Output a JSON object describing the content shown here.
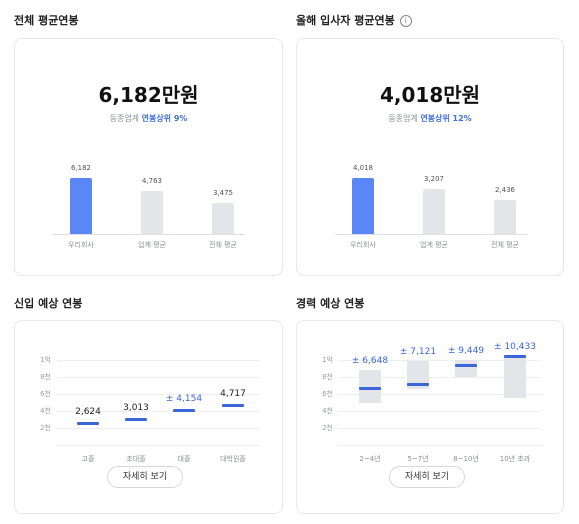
{
  "sections": {
    "overall": {
      "title": "전체 평균연봉",
      "value": "6,182만원",
      "sub_prefix": "동종업계",
      "sub_highlight": "연봉상위 9%",
      "bars": [
        {
          "label": "우리회사",
          "value": 6182,
          "value_label": "6,182"
        },
        {
          "label": "업계 평균",
          "value": 4763,
          "value_label": "4,763"
        },
        {
          "label": "전체 평균",
          "value": 3475,
          "value_label": "3,475"
        }
      ]
    },
    "new_hire": {
      "title": "올해 입사자 평균연봉",
      "info_icon": "info-icon",
      "value": "4,018만원",
      "sub_prefix": "동종업계",
      "sub_highlight": "연봉상위 12%",
      "bars": [
        {
          "label": "우리회사",
          "value": 4018,
          "value_label": "4,018"
        },
        {
          "label": "업계 평균",
          "value": 3207,
          "value_label": "3,207"
        },
        {
          "label": "전체 평균",
          "value": 2436,
          "value_label": "2,436"
        }
      ]
    },
    "entry": {
      "title": "신입 예상 연봉",
      "y_ticks": [
        "1억",
        "8천",
        "6천",
        "4천",
        "2천"
      ],
      "points": [
        {
          "label": "고졸",
          "value": 2624,
          "value_label": "2,624",
          "highlight": false
        },
        {
          "label": "초대졸",
          "value": 3013,
          "value_label": "3,013",
          "highlight": false
        },
        {
          "label": "대졸",
          "value": 4154,
          "value_label": "± 4,154",
          "highlight": true
        },
        {
          "label": "대학원졸",
          "value": 4717,
          "value_label": "4,717",
          "highlight": false
        }
      ],
      "button": "자세히 보기"
    },
    "career": {
      "title": "경력 예상 연봉",
      "y_ticks": [
        "1억",
        "8천",
        "6천",
        "4천",
        "2천"
      ],
      "points": [
        {
          "label": "2~4년",
          "value": 6648,
          "low": 4900,
          "high": 8800,
          "value_label": "± 6,648"
        },
        {
          "label": "5~7년",
          "value": 7121,
          "low": 6600,
          "high": 9900,
          "value_label": "± 7,121"
        },
        {
          "label": "8~10년",
          "value": 9449,
          "low": 8000,
          "high": 10000,
          "value_label": "± 9,449"
        },
        {
          "label": "10년 초과",
          "value": 10433,
          "low": 5500,
          "high": 10433,
          "value_label": "± 10,433"
        }
      ],
      "button": "자세히 보기"
    }
  },
  "colors": {
    "primary": "#5b86f5",
    "accent": "#3a66d8",
    "gray_bar": "#e4e5e8",
    "highlight_text": "#3f6fe0"
  }
}
